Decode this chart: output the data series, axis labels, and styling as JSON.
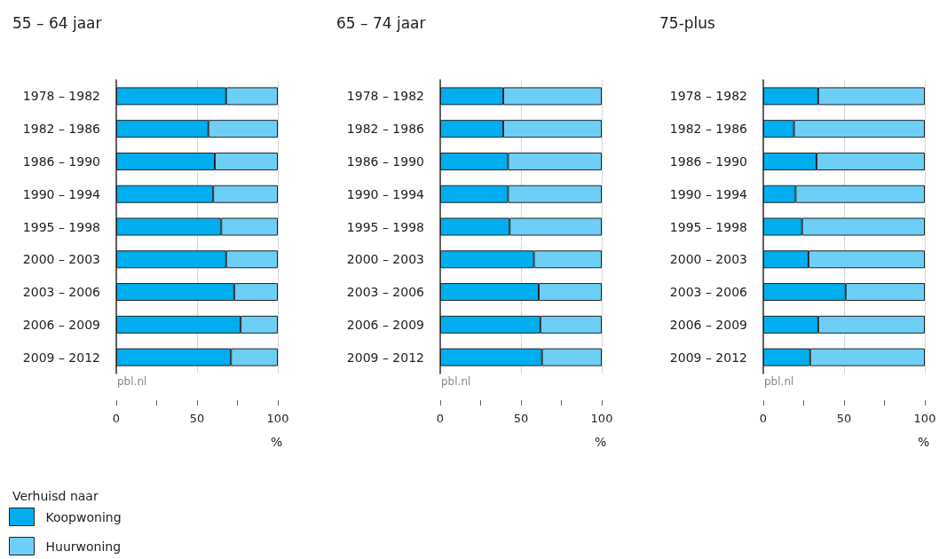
{
  "chart_data": [
    {
      "type": "bar",
      "title": "55 – 64 jaar",
      "orientation": "horizontal",
      "stacked": true,
      "xlabel": "%",
      "legend": "bottom left",
      "legend_title": "Verhuisd naar",
      "grid": "x",
      "annotations": [
        "pbl.nl"
      ],
      "categories": [
        "1978 – 1982",
        "1982 – 1986",
        "1986 – 1990",
        "1990 – 1994",
        "1995 – 1998",
        "2000 – 2003",
        "2003 – 2006",
        "2006 – 2009",
        "2009 – 2012"
      ],
      "xlim": [
        0,
        100
      ],
      "xticks": [
        0,
        50,
        100
      ],
      "series": [
        {
          "name": "Koopwoning",
          "color": "#00aeef",
          "values": [
            68,
            57,
            61,
            60,
            65,
            68,
            73,
            77,
            71
          ]
        },
        {
          "name": "Huurwoning",
          "color": "#6dcff6",
          "values": [
            32,
            43,
            39,
            40,
            35,
            32,
            27,
            23,
            29
          ]
        }
      ]
    },
    {
      "type": "bar",
      "title": "65 – 74 jaar",
      "orientation": "horizontal",
      "stacked": true,
      "xlabel": "%",
      "grid": "x",
      "annotations": [
        "pbl.nl"
      ],
      "categories": [
        "1978 – 1982",
        "1982 – 1986",
        "1986 – 1990",
        "1990 – 1994",
        "1995 – 1998",
        "2000 – 2003",
        "2003 – 2006",
        "2006 – 2009",
        "2009 – 2012"
      ],
      "xlim": [
        0,
        100
      ],
      "xticks": [
        0,
        50,
        100
      ],
      "series": [
        {
          "color": "#00aeef",
          "values": [
            39,
            39,
            42,
            42,
            43,
            58,
            61,
            62,
            63
          ]
        },
        {
          "color": "#6dcff6",
          "values": [
            61,
            61,
            58,
            58,
            57,
            42,
            39,
            38,
            37
          ]
        }
      ]
    },
    {
      "type": "bar",
      "title": "75-plus",
      "orientation": "horizontal",
      "stacked": true,
      "xlabel": "%",
      "grid": "x",
      "annotations": [
        "pbl.nl"
      ],
      "categories": [
        "1978 – 1982",
        "1982 – 1986",
        "1986 – 1990",
        "1990 – 1994",
        "1995 – 1998",
        "2000 – 2003",
        "2003 – 2006",
        "2006 – 2009",
        "2009 – 2012"
      ],
      "xlim": [
        0,
        100
      ],
      "xticks": [
        0,
        50,
        100
      ],
      "series": [
        {
          "color": "#00aeef",
          "values": [
            34,
            19,
            33,
            20,
            24,
            28,
            51,
            34,
            29
          ]
        },
        {
          "color": "#6dcff6",
          "values": [
            66,
            81,
            67,
            80,
            76,
            72,
            49,
            66,
            71
          ]
        }
      ]
    }
  ]
}
